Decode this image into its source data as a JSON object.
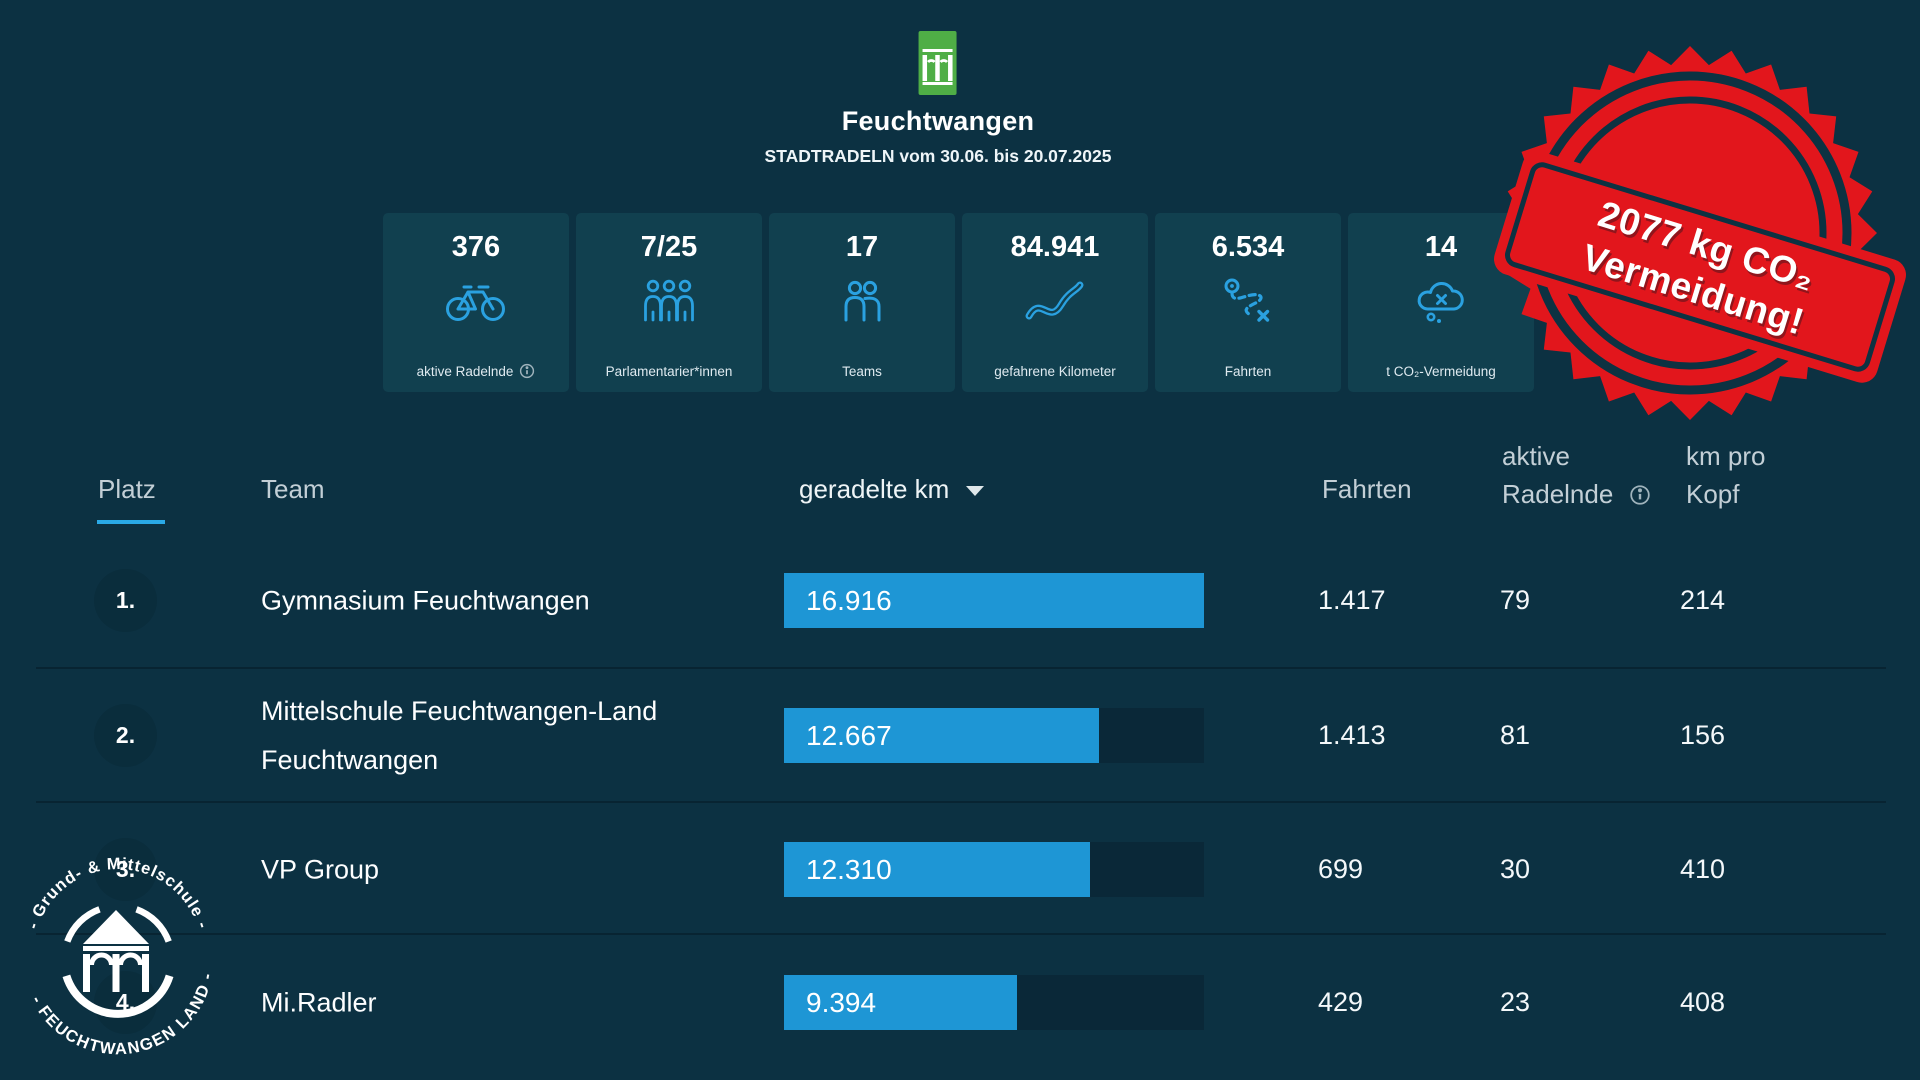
{
  "header": {
    "municipality": "Feuchtwangen",
    "subtitle": "STADTRADELN vom 30.06. bis 20.07.2025"
  },
  "stats": [
    {
      "value": "376",
      "label": "aktive Radelnde",
      "icon": "bicycle-icon",
      "has_info": true
    },
    {
      "value": "7/25",
      "label": "Parlamentarier*innen",
      "icon": "people-group-icon",
      "has_info": false
    },
    {
      "value": "17",
      "label": "Teams",
      "icon": "team-icon",
      "has_info": false
    },
    {
      "value": "84.941",
      "label": "gefahrene Kilometer",
      "icon": "winding-road-icon",
      "has_info": false
    },
    {
      "value": "6.534",
      "label": "Fahrten",
      "icon": "route-icon",
      "has_info": false
    },
    {
      "value": "14",
      "label": "t CO₂-Vermeidung",
      "icon": "co2-cloud-icon",
      "has_info": false
    }
  ],
  "stamp": {
    "line1": "2077 kg CO₂",
    "line2": "Vermeidung!"
  },
  "table": {
    "headers": {
      "platz": "Platz",
      "team": "Team",
      "km": "geradelte km",
      "fahrten": "Fahrten",
      "radelnde_line1": "aktive",
      "radelnde_line2": "Radelnde",
      "kopf_line1": "km pro",
      "kopf_line2": "Kopf"
    },
    "max_km": 16916,
    "rows": [
      {
        "rank": "1.",
        "team": "Gymnasium Feuchtwangen",
        "km": "16.916",
        "km_value": 16916,
        "fahrten": "1.417",
        "radelnde": "79",
        "km_pro_kopf": "214"
      },
      {
        "rank": "2.",
        "team": "Mittelschule Feuchtwangen-Land Feuchtwangen",
        "km": "12.667",
        "km_value": 12667,
        "fahrten": "1.413",
        "radelnde": "81",
        "km_pro_kopf": "156"
      },
      {
        "rank": "3.",
        "team": "VP Group",
        "km": "12.310",
        "km_value": 12310,
        "fahrten": "699",
        "radelnde": "30",
        "km_pro_kopf": "410"
      },
      {
        "rank": "4.",
        "team": "Mi.Radler",
        "km": "9.394",
        "km_value": 9394,
        "fahrten": "429",
        "radelnde": "23",
        "km_pro_kopf": "408"
      }
    ]
  },
  "chart_data": {
    "type": "bar",
    "categories": [
      "Gymnasium Feuchtwangen",
      "Mittelschule Feuchtwangen-Land Feuchtwangen",
      "VP Group",
      "Mi.Radler"
    ],
    "values": [
      16916,
      12667,
      12310,
      9394
    ],
    "title": "geradelte km",
    "xlim": [
      0,
      16916
    ]
  },
  "school_badge": {
    "top_text": "- Grund- & Mittelschule -",
    "bottom_text": "- FEUCHTWANGEN LAND -"
  },
  "colors": {
    "background": "#0c3142",
    "tile": "#11404f",
    "bar_blue": "#1e96d5",
    "icon_blue": "#2aa1e0",
    "sort_underline": "#2aa9e6",
    "stamp_red": "#e2191d",
    "logo_green": "#4fae46"
  }
}
